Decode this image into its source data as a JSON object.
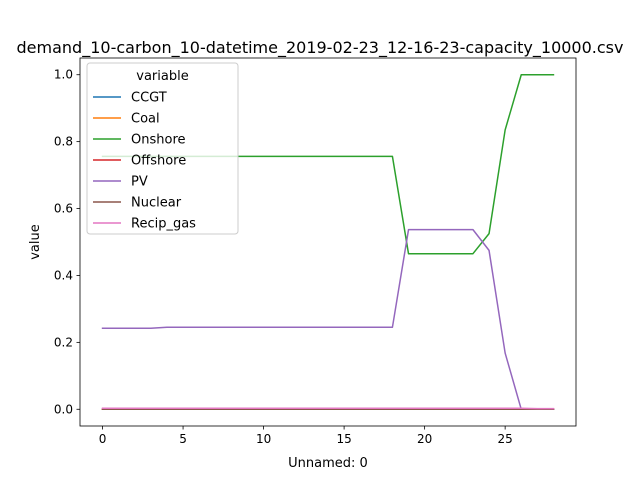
{
  "chart_data": {
    "type": "line",
    "title": "demand_10-carbon_10-datetime_2019-02-23_12-16-23-capacity_10000.csv",
    "xlabel": "Unnamed: 0",
    "ylabel": "value",
    "xlim": [
      -1.4,
      29.4
    ],
    "ylim": [
      -0.05,
      1.05
    ],
    "xticks": [
      0,
      5,
      10,
      15,
      20,
      25
    ],
    "yticks": [
      0.0,
      0.2,
      0.4,
      0.6,
      0.8,
      1.0
    ],
    "xtick_labels": [
      "0",
      "5",
      "10",
      "15",
      "20",
      "25"
    ],
    "ytick_labels": [
      "0.0",
      "0.2",
      "0.4",
      "0.6",
      "0.8",
      "1.0"
    ],
    "grid": false,
    "legend": {
      "title": "variable",
      "placement": "upper-left"
    },
    "x": [
      0,
      1,
      2,
      3,
      4,
      5,
      6,
      7,
      8,
      9,
      10,
      11,
      12,
      13,
      14,
      15,
      16,
      17,
      18,
      19,
      20,
      21,
      22,
      23,
      24,
      25,
      26,
      27,
      28
    ],
    "series": [
      {
        "name": "CCGT",
        "color": "#1f77b4",
        "values": [
          0,
          0,
          0,
          0,
          0,
          0,
          0,
          0,
          0,
          0,
          0,
          0,
          0,
          0,
          0,
          0,
          0,
          0,
          0,
          0,
          0,
          0,
          0,
          0,
          0,
          0,
          0,
          0,
          0
        ]
      },
      {
        "name": "Coal",
        "color": "#ff7f0e",
        "values": [
          0,
          0,
          0,
          0,
          0,
          0,
          0,
          0,
          0,
          0,
          0,
          0,
          0,
          0,
          0,
          0,
          0,
          0,
          0,
          0,
          0,
          0,
          0,
          0,
          0,
          0,
          0,
          0,
          0
        ]
      },
      {
        "name": "Onshore",
        "color": "#2ca02c",
        "values": [
          0.756,
          0.756,
          0.756,
          0.756,
          0.756,
          0.756,
          0.756,
          0.756,
          0.756,
          0.756,
          0.756,
          0.756,
          0.756,
          0.756,
          0.756,
          0.756,
          0.756,
          0.756,
          0.756,
          0.465,
          0.465,
          0.465,
          0.465,
          0.465,
          0.525,
          0.835,
          1.0,
          1.0,
          1.0
        ]
      },
      {
        "name": "Offshore",
        "color": "#d62728",
        "values": [
          0,
          0,
          0,
          0,
          0,
          0,
          0,
          0,
          0,
          0,
          0,
          0,
          0,
          0,
          0,
          0,
          0,
          0,
          0,
          0,
          0,
          0,
          0,
          0,
          0,
          0,
          0,
          0,
          0
        ]
      },
      {
        "name": "PV",
        "color": "#9467bd",
        "values": [
          0.242,
          0.242,
          0.242,
          0.242,
          0.245,
          0.245,
          0.245,
          0.245,
          0.245,
          0.245,
          0.245,
          0.245,
          0.245,
          0.245,
          0.245,
          0.245,
          0.245,
          0.245,
          0.245,
          0.537,
          0.537,
          0.537,
          0.537,
          0.537,
          0.475,
          0.168,
          0.0,
          0.0,
          0.0
        ]
      },
      {
        "name": "Nuclear",
        "color": "#8c564b",
        "values": [
          0,
          0,
          0,
          0,
          0,
          0,
          0,
          0,
          0,
          0,
          0,
          0,
          0,
          0,
          0,
          0,
          0,
          0,
          0,
          0,
          0,
          0,
          0,
          0,
          0,
          0,
          0,
          0,
          0
        ]
      },
      {
        "name": "Recip_gas",
        "color": "#e377c2",
        "values": [
          0.003,
          0.003,
          0.003,
          0.003,
          0.003,
          0.003,
          0.003,
          0.003,
          0.003,
          0.003,
          0.003,
          0.003,
          0.003,
          0.003,
          0.003,
          0.003,
          0.003,
          0.003,
          0.003,
          0.003,
          0.003,
          0.003,
          0.003,
          0.003,
          0.003,
          0.003,
          0.003,
          0.002,
          0.002
        ]
      }
    ]
  }
}
